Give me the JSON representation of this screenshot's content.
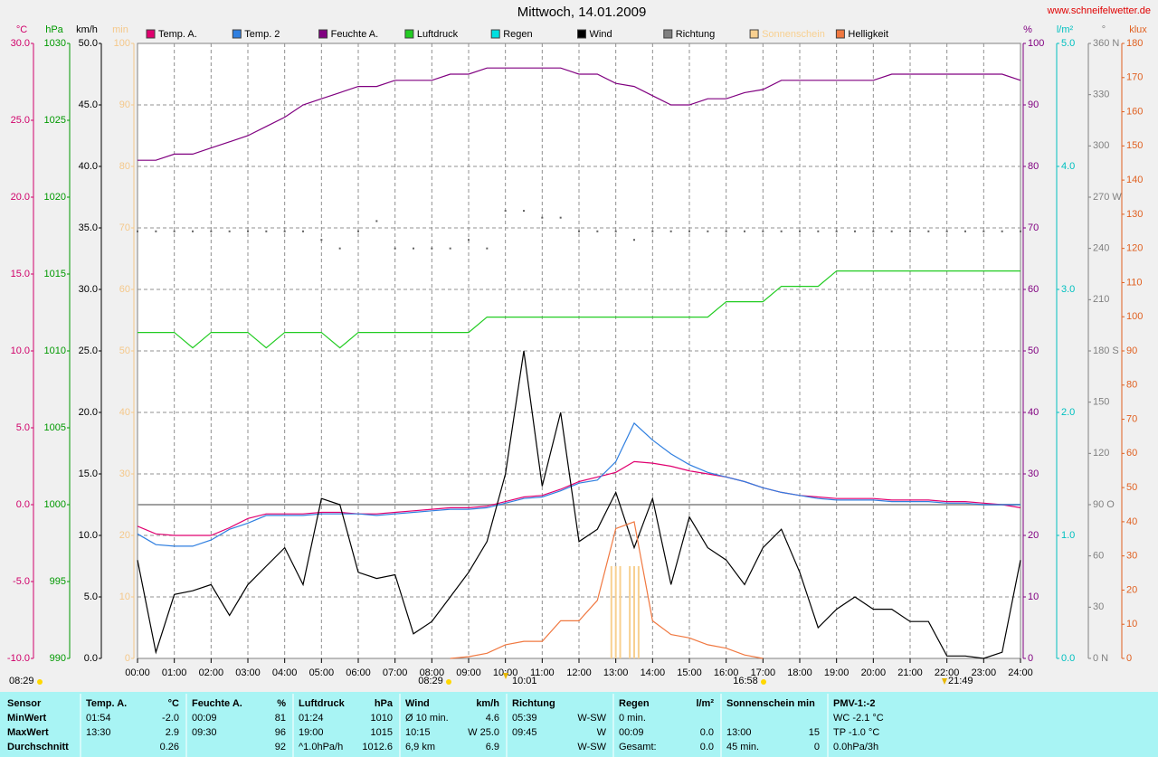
{
  "chart_data": {
    "type": "line",
    "title": "Mittwoch, 14.01.2009",
    "source": "www.schneifelwetter.de",
    "xlim": [
      0,
      24
    ],
    "xticks": [
      {
        "value": 0,
        "label": "00:00"
      },
      {
        "value": 1,
        "label": "01:00"
      },
      {
        "value": 2,
        "label": "02:00"
      },
      {
        "value": 3,
        "label": "03:00"
      },
      {
        "value": 4,
        "label": "04:00"
      },
      {
        "value": 5,
        "label": "05:00"
      },
      {
        "value": 6,
        "label": "06:00"
      },
      {
        "value": 7,
        "label": "07:00"
      },
      {
        "value": 8,
        "label": "08:00"
      },
      {
        "value": 9,
        "label": "09:00"
      },
      {
        "value": 10,
        "label": "10:00"
      },
      {
        "value": 11,
        "label": "11:00"
      },
      {
        "value": 12,
        "label": "12:00"
      },
      {
        "value": 13,
        "label": "13:00"
      },
      {
        "value": 14,
        "label": "14:00"
      },
      {
        "value": 15,
        "label": "15:00"
      },
      {
        "value": 16,
        "label": "16:00"
      },
      {
        "value": 17,
        "label": "17:00"
      },
      {
        "value": 18,
        "label": "18:00"
      },
      {
        "value": 19,
        "label": "19:00"
      },
      {
        "value": 20,
        "label": "20:00"
      },
      {
        "value": 21,
        "label": "21:00"
      },
      {
        "value": 22,
        "label": "22:00"
      },
      {
        "value": 23,
        "label": "23:00"
      },
      {
        "value": 24,
        "label": "24:00"
      }
    ],
    "grid": true,
    "axes": [
      {
        "label": "°C",
        "color": "#d0006a",
        "side": "left",
        "lim": [
          -10,
          30
        ],
        "ticks": [
          {
            "value": -10,
            "label": "-10.0"
          },
          {
            "value": -5,
            "label": "-5.0"
          },
          {
            "value": 0,
            "label": "0.0"
          },
          {
            "value": 5,
            "label": "5.0"
          },
          {
            "value": 10,
            "label": "10.0"
          },
          {
            "value": 15,
            "label": "15.0"
          },
          {
            "value": 20,
            "label": "20.0"
          },
          {
            "value": 25,
            "label": "25.0"
          },
          {
            "value": 30,
            "label": "30.0"
          }
        ]
      },
      {
        "label": "hPa",
        "color": "#009900",
        "side": "left",
        "lim": [
          990,
          1030
        ],
        "ticks": [
          990,
          995,
          1000,
          1005,
          1010,
          1015,
          1020,
          1025,
          1030
        ]
      },
      {
        "label": "km/h",
        "color": "#000000",
        "side": "left",
        "lim": [
          0,
          50
        ],
        "ticks": [
          {
            "value": 0,
            "label": "0.0"
          },
          {
            "value": 5,
            "label": "5.0"
          },
          {
            "value": 10,
            "label": "10.0"
          },
          {
            "value": 15,
            "label": "15.0"
          },
          {
            "value": 20,
            "label": "20.0"
          },
          {
            "value": 25,
            "label": "25.0"
          },
          {
            "value": 30,
            "label": "30.0"
          },
          {
            "value": 35,
            "label": "35.0"
          },
          {
            "value": 40,
            "label": "40.0"
          },
          {
            "value": 45,
            "label": "45.0"
          },
          {
            "value": 50,
            "label": "50.0"
          }
        ]
      },
      {
        "label": "min",
        "color": "#f5c88a",
        "side": "left",
        "lim": [
          0,
          100
        ],
        "ticks": [
          0,
          10,
          20,
          30,
          40,
          50,
          60,
          70,
          80,
          90,
          100
        ]
      },
      {
        "label": "%",
        "color": "#800080",
        "side": "right",
        "lim": [
          0,
          100
        ],
        "ticks": [
          0,
          10,
          20,
          30,
          40,
          50,
          60,
          70,
          80,
          90,
          100
        ]
      },
      {
        "label": "l/m²",
        "color": "#00c0c0",
        "side": "right",
        "lim": [
          0,
          5
        ],
        "ticks": [
          {
            "value": 0,
            "label": "0.0"
          },
          {
            "value": 1,
            "label": "1.0"
          },
          {
            "value": 2,
            "label": "2.0"
          },
          {
            "value": 3,
            "label": "3.0"
          },
          {
            "value": 4,
            "label": "4.0"
          },
          {
            "value": 5,
            "label": "5.0"
          }
        ]
      },
      {
        "label": "°",
        "color": "#808080",
        "side": "right",
        "lim": [
          0,
          360
        ],
        "ticks": [
          {
            "value": 0,
            "label": "0 N"
          },
          30,
          60,
          {
            "value": 90,
            "label": "90 O"
          },
          120,
          150,
          {
            "value": 180,
            "label": "180 S"
          },
          210,
          240,
          {
            "value": 270,
            "label": "270 W"
          },
          300,
          330,
          {
            "value": 360,
            "label": "360 N"
          }
        ]
      },
      {
        "label": "klux",
        "color": "#e06020",
        "side": "right",
        "lim": [
          0,
          180
        ],
        "ticks": [
          0,
          10,
          20,
          30,
          40,
          50,
          60,
          70,
          80,
          90,
          100,
          110,
          120,
          130,
          140,
          150,
          160,
          170,
          180
        ]
      }
    ],
    "x": [
      0,
      0.5,
      1,
      1.5,
      2,
      2.5,
      3,
      3.5,
      4,
      4.5,
      5,
      5.5,
      6,
      6.5,
      7,
      7.5,
      8,
      8.5,
      9,
      9.5,
      10,
      10.5,
      11,
      11.5,
      12,
      12.5,
      13,
      13.5,
      14,
      14.5,
      15,
      15.5,
      16,
      16.5,
      17,
      17.5,
      18,
      18.5,
      19,
      19.5,
      20,
      20.5,
      21,
      21.5,
      22,
      22.5,
      23,
      23.5,
      24
    ],
    "series": [
      {
        "name": "Temp. A.",
        "color": "#e0006f",
        "axis": 0,
        "style": "line",
        "values": [
          -1.4,
          -1.9,
          -2.0,
          -2.0,
          -2.0,
          -1.5,
          -0.9,
          -0.6,
          -0.6,
          -0.6,
          -0.5,
          -0.5,
          -0.6,
          -0.6,
          -0.5,
          -0.4,
          -0.3,
          -0.2,
          -0.2,
          -0.1,
          0.2,
          0.5,
          0.6,
          1.0,
          1.5,
          1.8,
          2.1,
          2.8,
          2.7,
          2.5,
          2.2,
          2.0,
          1.8,
          1.5,
          1.1,
          0.8,
          0.6,
          0.5,
          0.4,
          0.4,
          0.4,
          0.3,
          0.3,
          0.3,
          0.2,
          0.2,
          0.1,
          0.0,
          -0.2
        ]
      },
      {
        "name": "Temp. 2",
        "color": "#2f7fe0",
        "axis": 0,
        "style": "line",
        "values": [
          -1.9,
          -2.6,
          -2.7,
          -2.7,
          -2.3,
          -1.6,
          -1.2,
          -0.7,
          -0.7,
          -0.7,
          -0.6,
          -0.6,
          -0.6,
          -0.7,
          -0.6,
          -0.5,
          -0.4,
          -0.3,
          -0.3,
          -0.2,
          0.1,
          0.4,
          0.5,
          0.9,
          1.4,
          1.6,
          2.8,
          5.3,
          4.2,
          3.3,
          2.6,
          2.1,
          1.8,
          1.5,
          1.1,
          0.8,
          0.6,
          0.4,
          0.3,
          0.3,
          0.3,
          0.2,
          0.2,
          0.2,
          0.1,
          0.1,
          0.0,
          0.0,
          0.0
        ]
      },
      {
        "name": "Feuchte A.",
        "color": "#800080",
        "axis": 4,
        "style": "line",
        "values": [
          81,
          81,
          82,
          82,
          83,
          84,
          85,
          86.5,
          88,
          90,
          91,
          92,
          93,
          93,
          94,
          94,
          94,
          95,
          95,
          96,
          96,
          96,
          96,
          96,
          95,
          95,
          93.5,
          93,
          91.5,
          90,
          90,
          91,
          91,
          92,
          92.5,
          94,
          94,
          94,
          94,
          94,
          94,
          95,
          95,
          95,
          95,
          95,
          95,
          95,
          94
        ]
      },
      {
        "name": "Luftdruck",
        "color": "#22cc22",
        "axis": 1,
        "style": "line",
        "values": [
          1011.2,
          1011.2,
          1011.2,
          1010.2,
          1011.2,
          1011.2,
          1011.2,
          1010.2,
          1011.2,
          1011.2,
          1011.2,
          1010.2,
          1011.2,
          1011.2,
          1011.2,
          1011.2,
          1011.2,
          1011.2,
          1011.2,
          1012.2,
          1012.2,
          1012.2,
          1012.2,
          1012.2,
          1012.2,
          1012.2,
          1012.2,
          1012.2,
          1012.2,
          1012.2,
          1012.2,
          1012.2,
          1013.2,
          1013.2,
          1013.2,
          1014.2,
          1014.2,
          1014.2,
          1015.2,
          1015.2,
          1015.2,
          1015.2,
          1015.2,
          1015.2,
          1015.2,
          1015.2,
          1015.2,
          1015.2,
          1015.2
        ]
      },
      {
        "name": "Regen",
        "color": "#00e0e0",
        "axis": 5,
        "style": "line",
        "values": [
          null,
          null,
          null,
          null,
          null,
          null,
          null,
          null,
          null,
          null,
          null,
          null,
          null,
          null,
          null,
          null,
          null,
          null,
          null,
          null,
          null,
          null,
          null,
          null,
          null,
          null,
          null,
          null,
          null,
          null,
          null,
          null,
          null,
          null,
          null,
          null,
          null,
          null,
          null,
          null,
          null,
          null,
          null,
          null,
          null,
          null,
          null,
          null,
          null
        ]
      },
      {
        "name": "Wind",
        "color": "#000000",
        "axis": 2,
        "style": "line",
        "values": [
          8,
          0.5,
          5.2,
          5.5,
          6,
          3.5,
          6,
          7.5,
          9,
          6,
          13,
          12.5,
          7,
          6.5,
          6.8,
          2,
          3,
          5,
          7,
          9.5,
          15,
          25,
          14,
          20,
          9.5,
          10.5,
          13.5,
          9,
          13,
          6,
          11.5,
          9,
          8,
          6,
          9,
          10.5,
          7,
          2.5,
          4,
          5,
          4,
          4,
          3,
          3,
          0.2,
          0.2,
          0,
          0.5,
          8
        ]
      },
      {
        "name": "Richtung",
        "color": "#808080",
        "axis": 6,
        "style": "dots",
        "values": [
          250,
          250,
          250,
          250,
          250,
          250,
          250,
          250,
          250,
          250,
          245,
          240,
          250,
          256,
          240,
          240,
          240,
          240,
          245,
          240,
          262,
          262,
          258,
          258,
          250,
          250,
          250,
          245,
          250,
          250,
          250,
          250,
          250,
          250,
          250,
          250,
          250,
          250,
          250,
          250,
          250,
          250,
          250,
          250,
          250,
          250,
          250,
          250,
          250
        ]
      },
      {
        "name": "Sonnenschein",
        "color": "#f8d090",
        "axis": 3,
        "style": "bars",
        "values": [
          null,
          null,
          null,
          null,
          null,
          null,
          null,
          null,
          null,
          null,
          null,
          null,
          null,
          null,
          null,
          null,
          null,
          null,
          null,
          null,
          null,
          null,
          null,
          null,
          null,
          null,
          15,
          15,
          null,
          null,
          null,
          null,
          null,
          null,
          null,
          null,
          null,
          null,
          null,
          null,
          null,
          null,
          null,
          null,
          null,
          null,
          null,
          null,
          null
        ]
      },
      {
        "name": "Helligkeit",
        "color": "#f07840",
        "axis": 7,
        "style": "line",
        "values": [
          null,
          null,
          null,
          null,
          null,
          null,
          null,
          null,
          null,
          null,
          null,
          null,
          null,
          null,
          null,
          null,
          null,
          0,
          0.5,
          1.5,
          4,
          5,
          5,
          11,
          11,
          17,
          38,
          40,
          11,
          7,
          6,
          4,
          3,
          1,
          0,
          null,
          null,
          null,
          null,
          null,
          null,
          null,
          null,
          null,
          null,
          null,
          null,
          null,
          null
        ]
      }
    ],
    "annotations": [
      "08:29",
      "08:29",
      "10:01",
      "16:58",
      "21:49"
    ]
  },
  "table": {
    "groups": [
      {
        "header": "Sensor",
        "rows": [
          {
            "time": "MinWert"
          },
          {
            "time": "MaxWert"
          },
          {
            "time": "Durchschnitt"
          }
        ]
      },
      {
        "header": "Temp. A.",
        "unit": "°C",
        "rows": [
          {
            "time": "01:54",
            "value": "-2.0"
          },
          {
            "time": "13:30",
            "value": "2.9"
          },
          {
            "value": "0.26"
          }
        ]
      },
      {
        "header": "Feuchte A.",
        "unit": "%",
        "rows": [
          {
            "time": "00:09",
            "value": "81"
          },
          {
            "time": "09:30",
            "value": "96"
          },
          {
            "value": "92"
          }
        ]
      },
      {
        "header": "Luftdruck",
        "unit": "hPa",
        "rows": [
          {
            "time": "01:24",
            "value": "1010"
          },
          {
            "time": "19:00",
            "value": "1015"
          },
          {
            "time": "^1.0hPa/h",
            "value": "1012.6"
          }
        ]
      },
      {
        "header": "Wind",
        "unit": "km/h",
        "rows": [
          {
            "time": "Ø 10 min.",
            "value": "4.6"
          },
          {
            "time": "10:15",
            "value": "W 25.0"
          },
          {
            "time": "6,9 km",
            "value": "6.9"
          }
        ]
      },
      {
        "header": "Richtung",
        "rows": [
          {
            "time": "05:39",
            "value": "W-SW"
          },
          {
            "time": "09:45",
            "value": "W"
          },
          {
            "value": "W-SW"
          }
        ]
      },
      {
        "header": "Regen",
        "unit": "l/m²",
        "rows": [
          {
            "time": "0 min."
          },
          {
            "time": "00:09",
            "value": "0.0"
          },
          {
            "time": "Gesamt:",
            "value": "0.0"
          }
        ]
      },
      {
        "header": "Sonnenschein min",
        "rows": [
          null,
          {
            "time": "13:00",
            "value": "15"
          },
          {
            "time": "45 min.",
            "value": "0"
          }
        ]
      },
      {
        "header": "PMV-1:-2",
        "rows": [
          {
            "time": "WC -2.1 °C"
          },
          {
            "time": "TP -1.0 °C"
          },
          {
            "time": "0.0hPa/3h"
          }
        ]
      }
    ]
  }
}
